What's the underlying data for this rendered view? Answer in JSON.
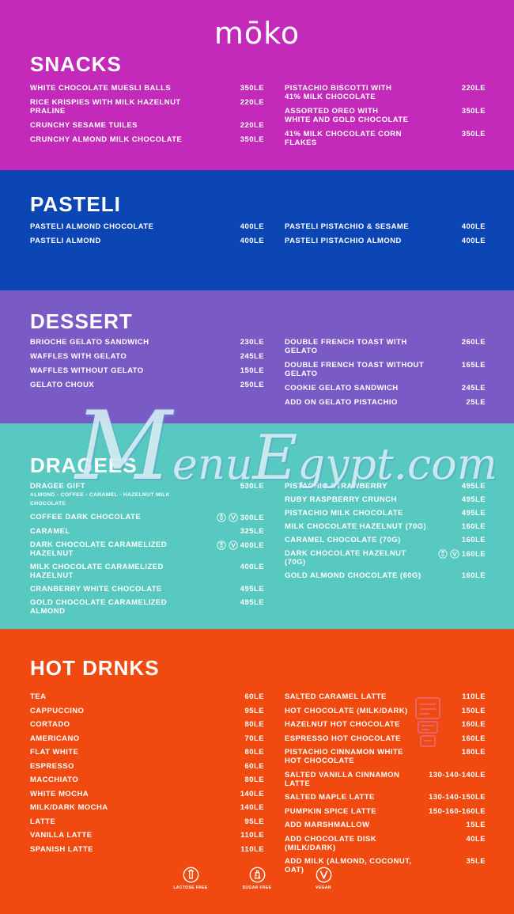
{
  "brand": {
    "logo": "mōko"
  },
  "watermark": {
    "m": "M",
    "enu": "enu",
    "e": "E",
    "rest": "gypt.com"
  },
  "colors": {
    "snacks": "#c32ab9",
    "pasteli": "#0b46b4",
    "dessert": "#7a5bc5",
    "dragees": "#58c9c1",
    "hot_drinks": "#f14a11",
    "text": "#ffffff",
    "watermark": "#cfeeeb",
    "stamp": "#e27ab0"
  },
  "sections": [
    {
      "id": "snacks",
      "title": "SNACKS",
      "columns": {
        "left": [
          {
            "name": "WHITE CHOCOLATE MUESLI BALLS",
            "price": "350LE"
          },
          {
            "name": "RICE KRISPIES WITH MILK HAZELNUT PRALINE",
            "price": "220LE"
          },
          {
            "name": "CRUNCHY SESAME TUILES",
            "price": "220LE"
          },
          {
            "name": "CRUNCHY ALMOND MILK CHOCOLATE",
            "price": "350LE"
          }
        ],
        "right": [
          {
            "name": "PISTACHIO BISCOTTI WITH",
            "name2": "41% MILK CHOCOLATE",
            "price": "220LE"
          },
          {
            "name": "ASSORTED OREO WITH",
            "name2": "WHITE AND GOLD CHOCOLATE",
            "price": "350LE"
          },
          {
            "name": "41% MILK CHOCOLATE CORN FLAKES",
            "price": "350LE"
          }
        ]
      }
    },
    {
      "id": "pasteli",
      "title": "PASTELI",
      "columns": {
        "left": [
          {
            "name": "PASTELI ALMOND CHOCOLATE",
            "price": "400LE"
          },
          {
            "name": "PASTELI ALMOND",
            "price": "400LE"
          }
        ],
        "right": [
          {
            "name": "PASTELI PISTACHIO & SESAME",
            "price": "400LE"
          },
          {
            "name": "PASTELI PISTACHIO ALMOND",
            "price": "400LE"
          }
        ]
      }
    },
    {
      "id": "dessert",
      "title": "DESSERT",
      "columns": {
        "left": [
          {
            "name": "BRIOCHE GELATO SANDWICH",
            "price": "230LE"
          },
          {
            "name": "WAFFLES WITH GELATO",
            "price": "245LE"
          },
          {
            "name": "WAFFLES WITHOUT GELATO",
            "price": "150LE"
          },
          {
            "name": "GELATO CHOUX",
            "price": "250LE"
          }
        ],
        "right": [
          {
            "name": "DOUBLE FRENCH TOAST WITH GELATO",
            "price": "260LE"
          },
          {
            "name": "DOUBLE FRENCH TOAST WITHOUT GELATO",
            "price": "165LE"
          },
          {
            "name": "COOKIE GELATO SANDWICH",
            "price": "245LE"
          },
          {
            "name": "ADD ON GELATO PISTACHIO",
            "price": "25LE"
          }
        ]
      }
    },
    {
      "id": "dragees",
      "title": "DRAGEES",
      "columns": {
        "left": [
          {
            "name": "DRAGEE GIFT",
            "sub": "ALMOND - COFFEE - CARAMEL - HAZELNUT MILK CHOCOLATE",
            "price": "530LE"
          },
          {
            "name": "COFFEE DARK CHOCOLATE",
            "badges": [
              "lactose-free",
              "vegan"
            ],
            "price": "300LE"
          },
          {
            "name": "CARAMEL",
            "price": "325LE"
          },
          {
            "name": "DARK CHOCOLATE CARAMELIZED HAZELNUT",
            "badges": [
              "lactose-free",
              "vegan"
            ],
            "price": "400LE"
          },
          {
            "name": "MILK CHOCOLATE CARAMELIZED HAZELNUT",
            "price": "400LE"
          },
          {
            "name": "CRANBERRY WHITE CHOCOLATE",
            "price": "495LE"
          },
          {
            "name": "GOLD CHOCOLATE CARAMELIZED ALMOND",
            "price": "495LE"
          }
        ],
        "right": [
          {
            "name": "PISTACHIO STRAWBERRY",
            "price": "495LE"
          },
          {
            "name": "RUBY RASPBERRY CRUNCH",
            "price": "495LE"
          },
          {
            "name": "PISTACHIO MILK CHOCOLATE",
            "price": "495LE"
          },
          {
            "name": "MILK CHOCOLATE HAZELNUT (70G)",
            "price": "160LE"
          },
          {
            "name": "CARAMEL CHOCOLATE  (70G)",
            "price": "160LE"
          },
          {
            "name": "DARK CHOCOLATE HAZELNUT (70G)",
            "badges": [
              "lactose-free",
              "vegan"
            ],
            "price": "160LE"
          },
          {
            "name": "GOLD ALMOND CHOCOLATE (60G)",
            "price": "160LE"
          }
        ]
      }
    },
    {
      "id": "hot-drinks",
      "title": "HOT DRNKS",
      "columns": {
        "left": [
          {
            "name": "TEA",
            "price": "60LE"
          },
          {
            "name": "CAPPUCCINO",
            "price": "95LE"
          },
          {
            "name": "CORTADO",
            "price": "80LE"
          },
          {
            "name": "AMERICANO",
            "price": "70LE"
          },
          {
            "name": "FLAT WHITE",
            "price": "80LE"
          },
          {
            "name": "ESPRESSO",
            "price": "60LE"
          },
          {
            "name": "MACCHIATO",
            "price": "80LE"
          },
          {
            "name": "WHITE MOCHA",
            "price": "140LE"
          },
          {
            "name": "MILK/DARK MOCHA",
            "price": "140LE"
          },
          {
            "name": "LATTE",
            "price": "95LE"
          },
          {
            "name": "VANILLA LATTE",
            "price": "110LE"
          },
          {
            "name": "SPANISH LATTE",
            "price": "110LE"
          }
        ],
        "right": [
          {
            "name": "SALTED CARAMEL LATTE",
            "price": "110LE"
          },
          {
            "name": "HOT CHOCOLATE (MILK/DARK)",
            "price": "150LE"
          },
          {
            "name": "HAZELNUT HOT CHOCOLATE",
            "price": "160LE"
          },
          {
            "name": "ESPRESSO HOT CHOCOLATE",
            "price": "160LE"
          },
          {
            "name": "PISTACHIO CINNAMON WHITE",
            "name2": "HOT CHOCOLATE",
            "price": "180LE"
          },
          {
            "name": "SALTED VANILLA CINNAMON",
            "name2": "LATTE",
            "price": "130-140-140LE"
          },
          {
            "name": "SALTED MAPLE LATTE",
            "price": "130-140-150LE"
          },
          {
            "name": "PUMPKIN SPICE LATTE",
            "price": "150-160-160LE"
          },
          {
            "name": "ADD MARSHMALLOW",
            "price": "15LE"
          },
          {
            "name": "ADD CHOCOLATE DISK (MILK/DARK)",
            "price": "40LE"
          },
          {
            "name": "ADD MILK (ALMOND, COCONUT, OAT)",
            "price": "35LE"
          }
        ]
      }
    }
  ],
  "legend": [
    {
      "type": "lactose-free",
      "label": "LACTOSE FREE"
    },
    {
      "type": "sugar-free",
      "label": "SUGAR FREE"
    },
    {
      "type": "vegan",
      "label": "VEGAN"
    }
  ]
}
